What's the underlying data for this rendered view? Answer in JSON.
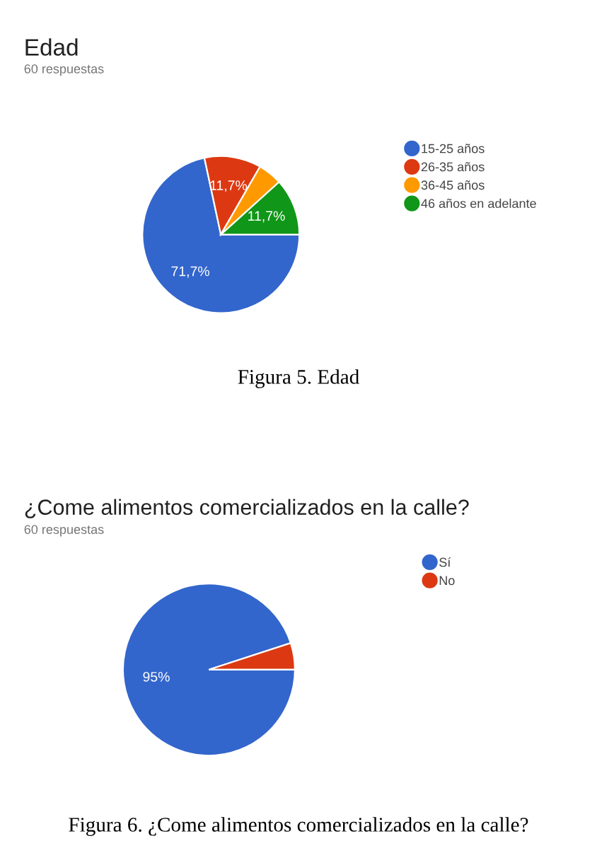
{
  "chart_data": [
    {
      "type": "pie",
      "title": "Edad",
      "subtitle": "60 respuestas",
      "categories": [
        "15-25 años",
        "26-35 años",
        "36-45 años",
        "46 años en adelante"
      ],
      "values": [
        71.7,
        11.7,
        5,
        11.7
      ],
      "colors": [
        "#3366cc",
        "#dc3912",
        "#ff9900",
        "#109618"
      ],
      "value_labels": [
        "71,7%",
        "11,7%",
        null,
        "11,7%"
      ],
      "legend": "right",
      "annotations": [
        "Figura 5. Edad"
      ]
    },
    {
      "type": "pie",
      "title": "¿Come alimentos comercializados en la calle?",
      "subtitle": "60 respuestas",
      "categories": [
        "Sí",
        "No"
      ],
      "values": [
        95,
        5
      ],
      "colors": [
        "#3366cc",
        "#dc3912"
      ],
      "value_labels": [
        "95%",
        null
      ],
      "legend": "right",
      "annotations": [
        "Figura 6. ¿Come alimentos comercializados en la calle?"
      ]
    }
  ]
}
